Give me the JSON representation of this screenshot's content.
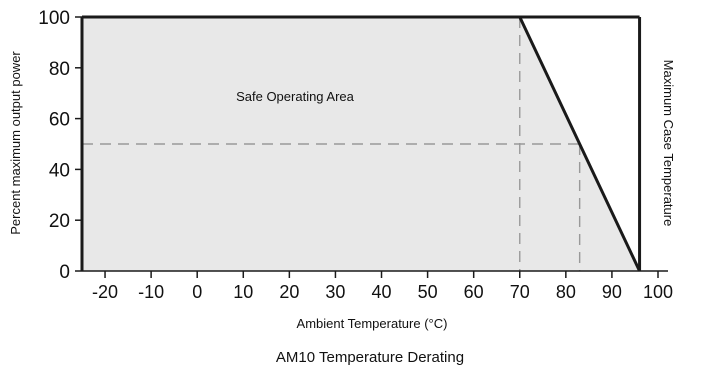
{
  "chart_data": {
    "type": "area",
    "title": "AM10 Temperature Derating",
    "xlabel": "Ambient Temperature (°C)",
    "ylabel": "Percent maximum output power",
    "xlim": [
      -25,
      100
    ],
    "ylim": [
      0,
      100
    ],
    "x_ticks": [
      -20,
      -10,
      0,
      10,
      20,
      30,
      40,
      50,
      60,
      70,
      80,
      90,
      100
    ],
    "y_ticks": [
      0,
      20,
      40,
      60,
      80,
      100
    ],
    "grid": false,
    "series": [
      {
        "points": [
          {
            "x": -25,
            "y": 100
          },
          {
            "x": 70,
            "y": 100
          },
          {
            "x": 83,
            "y": 50
          },
          {
            "x": 96,
            "y": 0
          }
        ]
      }
    ],
    "reference_lines": [
      {
        "axis": "x",
        "value": 70,
        "style": "dashed"
      },
      {
        "axis": "x",
        "value": 83,
        "style": "dashed"
      },
      {
        "axis": "y",
        "value": 50,
        "style": "dashed"
      },
      {
        "axis": "x",
        "value": 96,
        "style": "solid"
      }
    ],
    "annotations": {
      "region_label": "Safe Operating Area",
      "vertical_line_label": "Maximum Case Temperature"
    },
    "colors": {
      "area_fill": "#e8e8e8",
      "line": "#1a1a1a",
      "dash": "#999999"
    }
  }
}
